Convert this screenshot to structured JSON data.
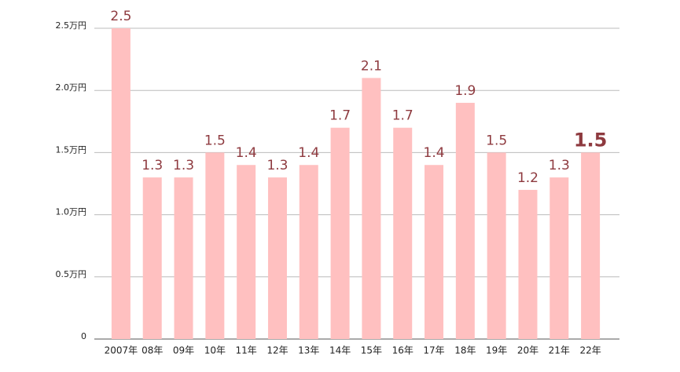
{
  "chart_data": {
    "type": "bar",
    "categories": [
      "2007年",
      "08年",
      "09年",
      "10年",
      "11年",
      "12年",
      "13年",
      "14年",
      "15年",
      "16年",
      "17年",
      "18年",
      "19年",
      "20年",
      "21年",
      "22年"
    ],
    "values": [
      2.5,
      1.3,
      1.3,
      1.5,
      1.4,
      1.3,
      1.4,
      1.7,
      2.1,
      1.7,
      1.4,
      1.9,
      1.5,
      1.2,
      1.3,
      1.5
    ],
    "color": "#ffc0c0",
    "ylim": [
      0,
      2.5
    ],
    "yticks": [
      0,
      {
        "value": 0.5,
        "label": "0.5万円"
      },
      {
        "value": 1,
        "label": "1.0万円"
      },
      {
        "value": 1.5,
        "label": "1.5万円"
      },
      {
        "value": 2,
        "label": "2.0万円"
      },
      {
        "value": 2.5,
        "label": "2.5万円"
      }
    ],
    "grid": true
  }
}
